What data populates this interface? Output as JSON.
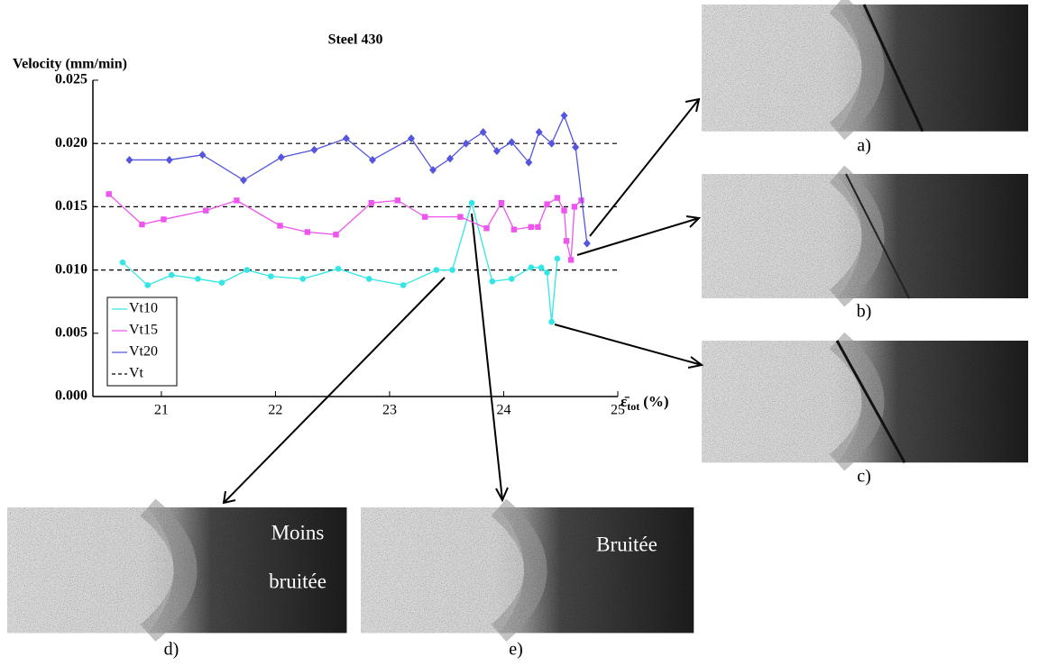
{
  "chart_data": {
    "type": "line",
    "title": "Steel 430",
    "y_label": "Velocity (mm/min)",
    "x_label": {
      "symbol": "ε̄",
      "subscript": "tot",
      "unit": "(%)"
    },
    "xlim": [
      20.4,
      25
    ],
    "xticks": [
      21,
      22,
      23,
      24,
      25
    ],
    "ylim": [
      0,
      0.025
    ],
    "yticks": [
      {
        "value": 0,
        "label": "0.000"
      },
      {
        "value": 0.005,
        "label": "0.005"
      },
      {
        "value": 0.01,
        "label": "0.010"
      },
      {
        "value": 0.015,
        "label": "0.015"
      },
      {
        "value": 0.02,
        "label": "0.020"
      },
      {
        "value": 0.025,
        "label": "0.025"
      }
    ],
    "series": [
      {
        "name": "Vt10",
        "color": "#33e6e6",
        "marker": "circle",
        "x": [
          20.66,
          20.88,
          21.09,
          21.32,
          21.53,
          21.75,
          21.96,
          22.24,
          22.55,
          22.82,
          23.12,
          23.41,
          23.55,
          23.72,
          23.9,
          24.07,
          24.24,
          24.33,
          24.38,
          24.42,
          24.47
        ],
        "values": [
          0.0106,
          0.0088,
          0.0096,
          0.0093,
          0.009,
          0.01,
          0.0095,
          0.0093,
          0.0101,
          0.0093,
          0.0088,
          0.01,
          0.01,
          0.0153,
          0.0091,
          0.0093,
          0.0102,
          0.0102,
          0.0098,
          0.0059,
          0.0109
        ]
      },
      {
        "name": "Vt15",
        "color": "#ee55ee",
        "marker": "square",
        "x": [
          20.54,
          20.83,
          21.02,
          21.39,
          21.66,
          22.04,
          22.28,
          22.53,
          22.84,
          23.07,
          23.31,
          23.62,
          23.85,
          23.98,
          24.09,
          24.24,
          24.3,
          24.38,
          24.47,
          24.53,
          24.55,
          24.59,
          24.62,
          24.68
        ],
        "values": [
          0.016,
          0.0136,
          0.014,
          0.0147,
          0.0155,
          0.0135,
          0.013,
          0.0128,
          0.0153,
          0.0155,
          0.0142,
          0.0142,
          0.0133,
          0.0153,
          0.0132,
          0.0134,
          0.0134,
          0.0152,
          0.0157,
          0.0147,
          0.0123,
          0.0108,
          0.015,
          0.0155
        ]
      },
      {
        "name": "Vt20",
        "color": "#5555dd",
        "marker": "diamond",
        "x": [
          20.72,
          21.07,
          21.36,
          21.72,
          22.05,
          22.34,
          22.62,
          22.85,
          23.19,
          23.38,
          23.53,
          23.67,
          23.82,
          23.94,
          24.07,
          24.22,
          24.31,
          24.42,
          24.53,
          24.63,
          24.73
        ],
        "values": [
          0.0187,
          0.0187,
          0.0191,
          0.0171,
          0.0189,
          0.0195,
          0.0204,
          0.0187,
          0.0204,
          0.0179,
          0.0188,
          0.02,
          0.0209,
          0.0194,
          0.0201,
          0.0185,
          0.0209,
          0.02,
          0.0222,
          0.0197,
          0.0121
        ]
      }
    ],
    "reference_lines": {
      "name": "Vt",
      "color": "#000000",
      "values": [
        0.01,
        0.015,
        0.02
      ]
    },
    "legend": "lower-left"
  },
  "panels": [
    {
      "caption": "a)"
    },
    {
      "caption": "b)"
    },
    {
      "caption": "c)"
    },
    {
      "caption": "d)",
      "overlay": [
        "Moins",
        "bruitée"
      ]
    },
    {
      "caption": "e)",
      "overlay": [
        "Bruitée"
      ]
    }
  ]
}
